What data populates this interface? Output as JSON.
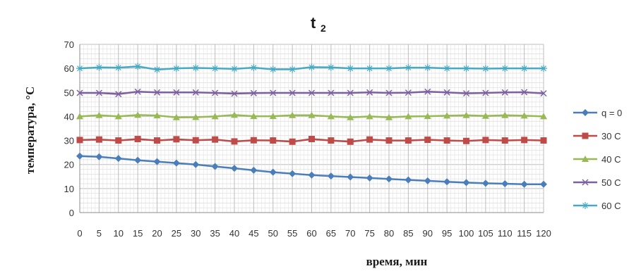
{
  "chart_data": {
    "type": "line",
    "title_main": "t",
    "title_sub": "2",
    "xlabel": "время, мин",
    "ylabel": "температура, °С",
    "x": [
      0,
      5,
      10,
      15,
      20,
      25,
      30,
      35,
      40,
      45,
      50,
      55,
      60,
      65,
      70,
      75,
      80,
      85,
      90,
      95,
      100,
      105,
      110,
      115,
      120
    ],
    "xticks": [
      "0",
      "5",
      "10",
      "15",
      "20",
      "25",
      "30",
      "35",
      "40",
      "45",
      "50",
      "55",
      "60",
      "65",
      "70",
      "75",
      "80",
      "85",
      "90",
      "95",
      "100",
      "105",
      "110",
      "115",
      "120"
    ],
    "ylim": [
      0,
      70
    ],
    "yticks": [
      "0",
      "10",
      "20",
      "30",
      "40",
      "50",
      "60",
      "70"
    ],
    "grid": true,
    "legend_position": "right",
    "series": [
      {
        "name": "q = 0",
        "color": "#4a7ebb",
        "marker": "diamond",
        "values": [
          23.5,
          23.2,
          22.5,
          21.8,
          21.2,
          20.6,
          20.0,
          19.2,
          18.4,
          17.6,
          16.8,
          16.2,
          15.6,
          15.2,
          14.8,
          14.4,
          14.0,
          13.6,
          13.2,
          12.8,
          12.5,
          12.2,
          12.0,
          11.8,
          11.8
        ]
      },
      {
        "name": "30 С",
        "color": "#be4b48",
        "marker": "square",
        "values": [
          30.2,
          30.4,
          30.0,
          30.6,
          30.0,
          30.5,
          30.1,
          30.4,
          29.6,
          30.1,
          30.0,
          29.5,
          30.6,
          30.0,
          29.5,
          30.4,
          30.0,
          30.0,
          30.3,
          30.0,
          29.8,
          30.2,
          30.0,
          30.2,
          30.0
        ]
      },
      {
        "name": "40 С",
        "color": "#98b954",
        "marker": "triangle",
        "values": [
          40.0,
          40.5,
          40.0,
          40.6,
          40.4,
          39.6,
          39.7,
          40.0,
          40.6,
          40.1,
          40.1,
          40.5,
          40.5,
          40.0,
          39.6,
          40.0,
          39.6,
          40.0,
          40.1,
          40.3,
          40.5,
          40.2,
          40.5,
          40.3,
          40.0
        ]
      },
      {
        "name": "50 С",
        "color": "#7d60a0",
        "marker": "x",
        "values": [
          49.8,
          49.8,
          49.3,
          50.3,
          50.0,
          50.0,
          50.0,
          49.8,
          49.5,
          49.7,
          49.8,
          49.8,
          49.8,
          49.8,
          49.8,
          50.0,
          49.8,
          49.9,
          50.3,
          50.0,
          49.6,
          49.8,
          50.0,
          50.1,
          49.6
        ]
      },
      {
        "name": "60 С",
        "color": "#46aac5",
        "marker": "star",
        "values": [
          60.0,
          60.4,
          60.3,
          60.8,
          59.5,
          60.0,
          60.2,
          60.0,
          59.8,
          60.3,
          59.6,
          59.6,
          60.5,
          60.4,
          60.0,
          60.0,
          60.0,
          60.3,
          60.3,
          60.0,
          60.0,
          59.9,
          60.0,
          60.0,
          60.0
        ]
      }
    ]
  }
}
